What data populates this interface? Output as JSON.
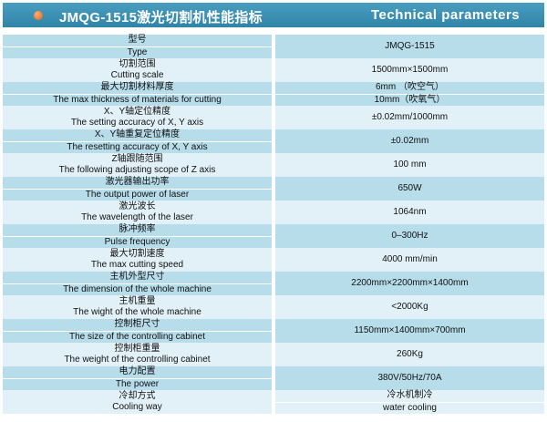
{
  "header": {
    "title": "JMQG-1515激光切割机性能指标",
    "title_en": "Technical parameters",
    "accent": "#2f84a8",
    "bullet_color": "#e0601a"
  },
  "rows": [
    {
      "cn": "型号",
      "en": "Type",
      "value": [
        "JMQG-1515"
      ]
    },
    {
      "cn": "切割范围",
      "en": "Cutting scale",
      "value": [
        "1500mm×1500mm"
      ]
    },
    {
      "cn": "最大切割材料厚度",
      "en": "The max thickness of materials for cutting",
      "value": [
        "6mm （吹空气）",
        "10mm（吹氧气）"
      ]
    },
    {
      "cn": "X、Y轴定位精度",
      "en": "The setting accuracy of X, Y axis",
      "value": [
        "±0.02mm/1000mm"
      ]
    },
    {
      "cn": "X、Y轴重复定位精度",
      "en": "The resetting accuracy of X, Y axis",
      "value": [
        "±0.02mm"
      ]
    },
    {
      "cn": "Z轴跟随范围",
      "en": "The following adjusting scope of Z axis",
      "value": [
        "100 mm"
      ]
    },
    {
      "cn": "激光器输出功率",
      "en": "The output power of laser",
      "value": [
        "650W"
      ]
    },
    {
      "cn": "激光波长",
      "en": "The wavelength of the laser",
      "value": [
        "1064nm"
      ]
    },
    {
      "cn": "脉冲频率",
      "en": "Pulse frequency",
      "value": [
        "0–300Hz"
      ]
    },
    {
      "cn": "最大切割速度",
      "en": "The max cutting speed",
      "value": [
        "4000 mm/min"
      ]
    },
    {
      "cn": "主机外型尺寸",
      "en": "The dimension of the whole machine",
      "value": [
        "2200mm×2200mm×1400mm"
      ]
    },
    {
      "cn": "主机重量",
      "en": "The wight of the whole machine",
      "value": [
        "<2000Kg"
      ]
    },
    {
      "cn": "控制柜尺寸",
      "en": "The size of the controlling cabinet",
      "value": [
        "1150mm×1400mm×700mm"
      ]
    },
    {
      "cn": "控制柜重量",
      "en": "The weight of the controlling cabinet",
      "value": [
        "260Kg"
      ]
    },
    {
      "cn": "电力配置",
      "en": "The power",
      "value": [
        "380V/50Hz/70A"
      ]
    },
    {
      "cn": "冷却方式",
      "en": "Cooling way",
      "value": [
        "冷水机制冷",
        "water cooling"
      ]
    }
  ]
}
